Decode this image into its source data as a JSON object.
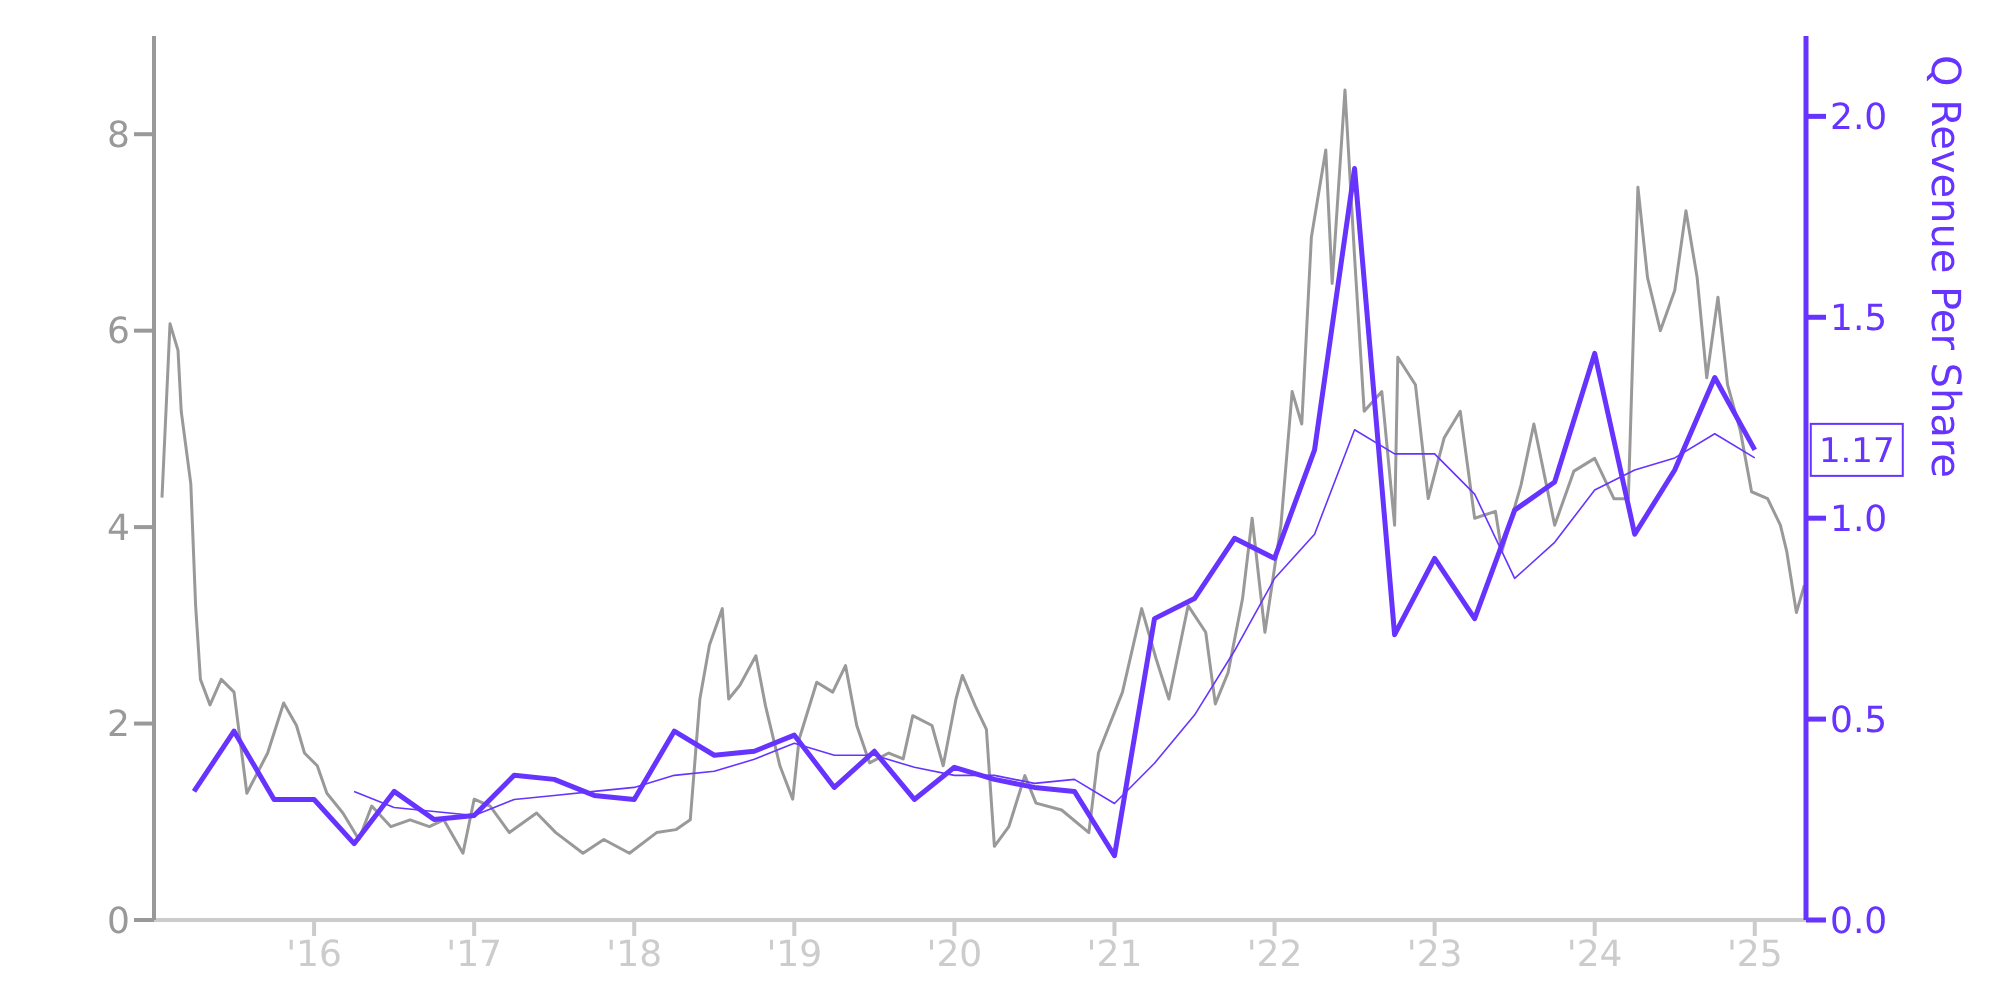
{
  "chart_data": {
    "type": "line",
    "y2label": "Q Revenue Per Share",
    "xlim": [
      2015,
      2025.32
    ],
    "xticks": [
      {
        "value": 2016,
        "label": "'16"
      },
      {
        "value": 2017,
        "label": "'17"
      },
      {
        "value": 2018,
        "label": "'18"
      },
      {
        "value": 2019,
        "label": "'19"
      },
      {
        "value": 2020,
        "label": "'20"
      },
      {
        "value": 2021,
        "label": "'21"
      },
      {
        "value": 2022,
        "label": "'22"
      },
      {
        "value": 2023,
        "label": "'23"
      },
      {
        "value": 2024,
        "label": "'24"
      },
      {
        "value": 2025,
        "label": "'25"
      }
    ],
    "ylim": [
      0,
      9
    ],
    "yticks": [
      0,
      2,
      4,
      6,
      8
    ],
    "y2lim": [
      0,
      2.2
    ],
    "y2ticks": [
      {
        "value": 0,
        "label": "0.0"
      },
      {
        "value": 0.5,
        "label": "0.5"
      },
      {
        "value": 1,
        "label": "1.0"
      },
      {
        "value": 1.5,
        "label": "1.5"
      },
      {
        "value": 2,
        "label": "2.0"
      }
    ],
    "grid": false,
    "legend": false,
    "marker": "none",
    "line_style": "solid",
    "series": [
      {
        "color": "#999999",
        "axis": "y",
        "x": [
          2015.05,
          2015.1,
          2015.15,
          2015.17,
          2015.23,
          2015.26,
          2015.29,
          2015.35,
          2015.42,
          2015.5,
          2015.58,
          2015.71,
          2015.81,
          2015.89,
          2015.94,
          2016.02,
          2016.08,
          2016.18,
          2016.28,
          2016.36,
          2016.48,
          2016.6,
          2016.72,
          2016.81,
          2016.93,
          2017.0,
          2017.1,
          2017.22,
          2017.39,
          2017.51,
          2017.68,
          2017.81,
          2017.97,
          2018.14,
          2018.26,
          2018.35,
          2018.41,
          2018.47,
          2018.55,
          2018.59,
          2018.66,
          2018.76,
          2018.82,
          2018.91,
          2018.99,
          2019.03,
          2019.14,
          2019.24,
          2019.32,
          2019.39,
          2019.47,
          2019.59,
          2019.68,
          2019.74,
          2019.86,
          2019.93,
          2020.01,
          2020.05,
          2020.13,
          2020.2,
          2020.25,
          2020.34,
          2020.44,
          2020.51,
          2020.67,
          2020.84,
          2020.9,
          2021.05,
          2021.17,
          2021.26,
          2021.34,
          2021.46,
          2021.57,
          2021.63,
          2021.71,
          2021.8,
          2021.86,
          2021.94,
          2022.04,
          2022.11,
          2022.17,
          2022.23,
          2022.32,
          2022.36,
          2022.44,
          2022.5,
          2022.56,
          2022.67,
          2022.75,
          2022.77,
          2022.88,
          2022.96,
          2023.06,
          2023.16,
          2023.25,
          2023.38,
          2023.42,
          2023.54,
          2023.62,
          2023.75,
          2023.87,
          2024.0,
          2024.12,
          2024.21,
          2024.27,
          2024.33,
          2024.41,
          2024.5,
          2024.57,
          2024.64,
          2024.7,
          2024.77,
          2024.83,
          2024.91,
          2024.98,
          2025.08,
          2025.16,
          2025.2,
          2025.26,
          2025.31
        ],
        "values": [
          4.3,
          6.07,
          5.8,
          5.18,
          4.44,
          3.2,
          2.45,
          2.19,
          2.45,
          2.32,
          1.29,
          1.7,
          2.21,
          1.98,
          1.7,
          1.57,
          1.29,
          1.09,
          0.82,
          1.16,
          0.95,
          1.02,
          0.95,
          1.02,
          0.68,
          1.23,
          1.16,
          0.89,
          1.09,
          0.89,
          0.68,
          0.82,
          0.68,
          0.89,
          0.92,
          1.02,
          2.25,
          2.8,
          3.17,
          2.25,
          2.39,
          2.69,
          2.18,
          1.57,
          1.23,
          1.84,
          2.42,
          2.32,
          2.59,
          1.98,
          1.6,
          1.7,
          1.64,
          2.08,
          1.98,
          1.57,
          2.25,
          2.49,
          2.18,
          1.94,
          0.75,
          0.95,
          1.47,
          1.19,
          1.12,
          0.89,
          1.7,
          2.32,
          3.17,
          2.66,
          2.25,
          3.2,
          2.93,
          2.2,
          2.52,
          3.27,
          4.09,
          2.93,
          4.02,
          5.38,
          5.05,
          6.95,
          7.84,
          6.48,
          8.45,
          6.75,
          5.18,
          5.38,
          4.02,
          5.73,
          5.45,
          4.29,
          4.91,
          5.18,
          4.09,
          4.16,
          3.75,
          4.43,
          5.05,
          4.02,
          4.57,
          4.7,
          4.29,
          4.29,
          7.46,
          6.54,
          6.0,
          6.41,
          7.22,
          6.54,
          5.52,
          6.34,
          5.45,
          4.98,
          4.36,
          4.29,
          4.02,
          3.75,
          3.13,
          3.41
        ]
      },
      {
        "color": "#6633ff",
        "axis": "y2",
        "x": [
          2015.25,
          2015.5,
          2015.75,
          2016,
          2016.25,
          2016.5,
          2016.75,
          2017,
          2017.25,
          2017.5,
          2017.75,
          2018,
          2018.25,
          2018.5,
          2018.75,
          2019,
          2019.25,
          2019.5,
          2019.75,
          2020,
          2020.25,
          2020.5,
          2020.75,
          2021,
          2021.25,
          2021.5,
          2021.75,
          2022,
          2022.25,
          2022.5,
          2022.75,
          2023,
          2023.25,
          2023.5,
          2023.75,
          2024,
          2024.25,
          2024.5,
          2024.75,
          2025
        ],
        "values": [
          0.32,
          0.47,
          0.3,
          0.3,
          0.19,
          0.32,
          0.25,
          0.26,
          0.36,
          0.35,
          0.31,
          0.3,
          0.47,
          0.41,
          0.42,
          0.46,
          0.33,
          0.42,
          0.3,
          0.38,
          0.35,
          0.33,
          0.32,
          0.16,
          0.75,
          0.8,
          0.95,
          0.9,
          1.17,
          1.87,
          0.71,
          0.9,
          0.75,
          1.02,
          1.09,
          1.41,
          0.96,
          1.12,
          1.35,
          1.17
        ],
        "value_labels": [
          null,
          null,
          null,
          null,
          null,
          null,
          null,
          null,
          null,
          null,
          null,
          null,
          null,
          null,
          null,
          null,
          null,
          null,
          null,
          null,
          null,
          null,
          null,
          null,
          null,
          null,
          null,
          null,
          null,
          null,
          null,
          null,
          null,
          null,
          null,
          null,
          null,
          null,
          null,
          "1.17"
        ]
      },
      {
        "color": "#6633ff",
        "axis": "y2",
        "x": [
          2016.25,
          2016.5,
          2016.75,
          2017,
          2017.25,
          2017.5,
          2017.75,
          2018,
          2018.25,
          2018.5,
          2018.75,
          2019,
          2019.25,
          2019.5,
          2019.75,
          2020,
          2020.25,
          2020.5,
          2020.75,
          2021,
          2021.25,
          2021.5,
          2021.75,
          2022,
          2022.25,
          2022.5,
          2022.75,
          2023,
          2023.25,
          2023.5,
          2023.75,
          2024,
          2024.25,
          2024.5,
          2024.75,
          2025
        ],
        "values": [
          0.32,
          0.28,
          0.27,
          0.26,
          0.3,
          0.31,
          0.32,
          0.33,
          0.36,
          0.37,
          0.4,
          0.44,
          0.41,
          0.41,
          0.38,
          0.36,
          0.36,
          0.34,
          0.35,
          0.29,
          0.39,
          0.51,
          0.67,
          0.85,
          0.96,
          1.22,
          1.16,
          1.16,
          1.06,
          0.85,
          0.94,
          1.07,
          1.12,
          1.15,
          1.21,
          1.15
        ]
      }
    ]
  }
}
